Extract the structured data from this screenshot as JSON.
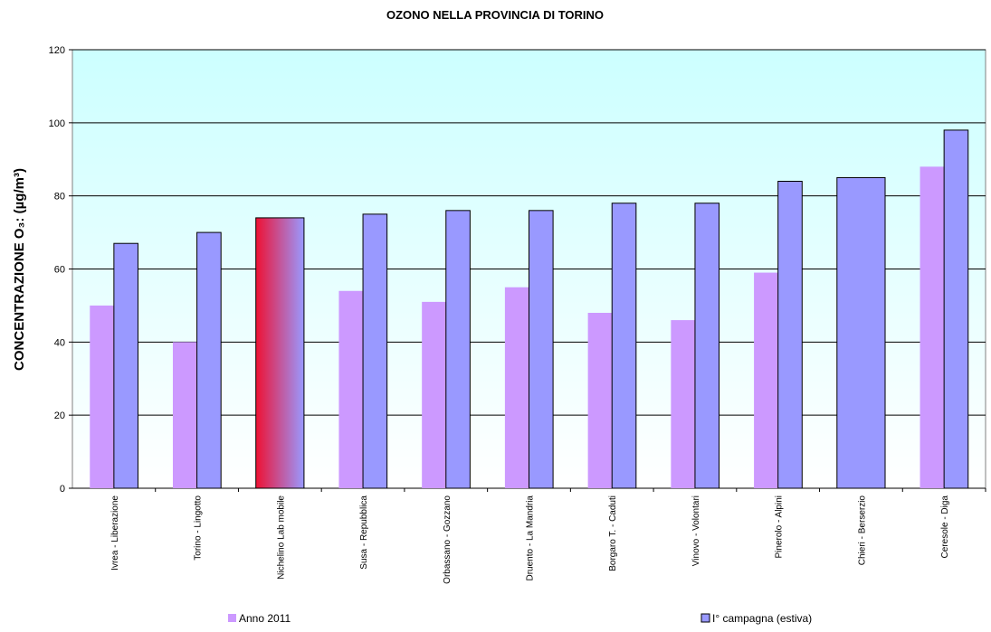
{
  "chart_data": {
    "type": "bar",
    "title": "OZONO NELLA PROVINCIA DI TORINO",
    "y_label": "CONCENTRAZIONE O₃: (µg/m³)",
    "categories": [
      "Ivrea - Liberazione",
      "Torino - Lingotto",
      "Nichelino Lab mobile",
      "Susa - Repubblica",
      "Orbassano - Gozzano",
      "Druento - La Mandria",
      "Borgaro T. - Caduti",
      "Vinovo - Volontari",
      "Pinerolo - Alpini",
      "Chieri - Berserzio",
      "Ceresole - Diga"
    ],
    "series": [
      {
        "name": "Anno 2011",
        "color": "#cc99ff",
        "values": [
          50,
          40,
          null,
          54,
          51,
          55,
          48,
          46,
          59,
          null,
          88
        ]
      },
      {
        "name": "I° campagna (estiva)",
        "color": "#9999ff",
        "values": [
          67,
          70,
          74,
          75,
          76,
          76,
          78,
          78,
          84,
          85,
          98
        ]
      }
    ],
    "highlight": {
      "index": 2,
      "colors": [
        "#ee1133",
        "#9999ff"
      ]
    },
    "ylim": [
      0,
      120
    ],
    "yticks": [
      0,
      20,
      40,
      60,
      80,
      100,
      120
    ],
    "grid": true,
    "legend": "bottom"
  }
}
